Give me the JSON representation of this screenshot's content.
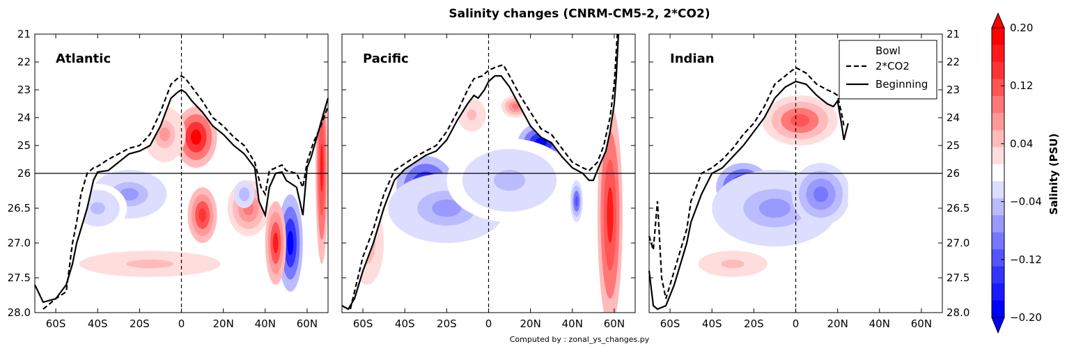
{
  "figure": {
    "title": "Salinity changes (CNRM-CM5-2, 2*CO2)",
    "footer": "Computed by : zonal_ys_changes.py"
  },
  "chart_data": {
    "type": "heatmap",
    "panels": [
      "Atlantic",
      "Pacific",
      "Indian"
    ],
    "x_ticks": [
      "60S",
      "40S",
      "20S",
      "0",
      "20N",
      "40N",
      "60N"
    ],
    "x_tick_values": [
      -60,
      -40,
      -20,
      0,
      20,
      40,
      60
    ],
    "xlim": [
      -70,
      70
    ],
    "y_ticks_upper": [
      "21",
      "22",
      "23",
      "24",
      "25",
      "26"
    ],
    "y_ticks_lower": [
      "26",
      "26.5",
      "27.0",
      "27.5",
      "28.0"
    ],
    "y_upper_range": [
      21,
      26
    ],
    "y_lower_range": [
      26,
      28
    ],
    "y_split": 26,
    "legend": {
      "title": "Bowl",
      "entries": [
        {
          "label": "2*CO2",
          "style": "dashed"
        },
        {
          "label": "Beginning",
          "style": "solid"
        }
      ]
    },
    "colorbar": {
      "label": "Salinity (PSU)",
      "tick_labels": [
        "0.20",
        "0.12",
        "0.04",
        "−0.04",
        "−0.12",
        "−0.20"
      ],
      "tick_values": [
        0.2,
        0.12,
        0.04,
        -0.04,
        -0.12,
        -0.2
      ],
      "range": [
        -0.2,
        0.2
      ],
      "extend": "both",
      "colors": [
        "#0000ff",
        "#1a1aff",
        "#3333ff",
        "#5555ff",
        "#7777ff",
        "#9999ff",
        "#bbbbff",
        "#ddddff",
        "#ffffff",
        "#ffdddd",
        "#ffbbbb",
        "#ff9999",
        "#ff7777",
        "#ff5555",
        "#ff3333",
        "#ff1a1a",
        "#ff0000"
      ]
    },
    "bowl_lines": [
      {
        "basin": "Atlantic",
        "beginning": [
          [
            -70,
            27.6
          ],
          [
            -66,
            27.85
          ],
          [
            -60,
            27.8
          ],
          [
            -55,
            27.6
          ],
          [
            -52,
            27.3
          ],
          [
            -50,
            27.0
          ],
          [
            -48,
            26.8
          ],
          [
            -45,
            26.5
          ],
          [
            -42,
            26.1
          ],
          [
            -40,
            25.95
          ],
          [
            -35,
            25.9
          ],
          [
            -30,
            25.6
          ],
          [
            -25,
            25.3
          ],
          [
            -20,
            25.2
          ],
          [
            -15,
            25.0
          ],
          [
            -10,
            24.3
          ],
          [
            -5,
            23.3
          ],
          [
            -2,
            23.1
          ],
          [
            0,
            23.0
          ],
          [
            2,
            23.1
          ],
          [
            5,
            23.4
          ],
          [
            10,
            23.8
          ],
          [
            15,
            24.3
          ],
          [
            20,
            24.6
          ],
          [
            25,
            25.0
          ],
          [
            30,
            25.3
          ],
          [
            35,
            25.8
          ],
          [
            37,
            26.4
          ],
          [
            40,
            26.6
          ],
          [
            42,
            26.2
          ],
          [
            45,
            26.0
          ],
          [
            48,
            25.95
          ],
          [
            50,
            26.1
          ],
          [
            55,
            26.2
          ],
          [
            58,
            26.6
          ],
          [
            60,
            25.8
          ],
          [
            62,
            25.4
          ],
          [
            65,
            24.6
          ],
          [
            68,
            23.8
          ],
          [
            70,
            23.3
          ]
        ],
        "co2": [
          [
            -66,
            27.95
          ],
          [
            -60,
            27.8
          ],
          [
            -55,
            27.7
          ],
          [
            -52,
            27.0
          ],
          [
            -50,
            26.7
          ],
          [
            -48,
            26.3
          ],
          [
            -45,
            26.0
          ],
          [
            -42,
            25.8
          ],
          [
            -40,
            25.75
          ],
          [
            -35,
            25.5
          ],
          [
            -30,
            25.3
          ],
          [
            -25,
            25.1
          ],
          [
            -20,
            25.0
          ],
          [
            -15,
            24.6
          ],
          [
            -10,
            23.8
          ],
          [
            -5,
            22.8
          ],
          [
            -2,
            22.6
          ],
          [
            0,
            22.5
          ],
          [
            2,
            22.6
          ],
          [
            5,
            22.9
          ],
          [
            10,
            23.4
          ],
          [
            15,
            24.0
          ],
          [
            20,
            24.3
          ],
          [
            25,
            24.7
          ],
          [
            30,
            25.0
          ],
          [
            35,
            25.6
          ],
          [
            38,
            26.2
          ],
          [
            40,
            26.3
          ],
          [
            42,
            25.9
          ],
          [
            45,
            25.8
          ],
          [
            48,
            25.7
          ],
          [
            50,
            25.9
          ],
          [
            55,
            26.0
          ],
          [
            58,
            26.2
          ],
          [
            60,
            25.6
          ],
          [
            63,
            24.9
          ],
          [
            66,
            24.4
          ],
          [
            70,
            23.6
          ]
        ]
      },
      {
        "basin": "Pacific",
        "beginning": [
          [
            -70,
            27.9
          ],
          [
            -67,
            27.95
          ],
          [
            -64,
            27.8
          ],
          [
            -60,
            27.4
          ],
          [
            -55,
            27.0
          ],
          [
            -50,
            26.5
          ],
          [
            -45,
            26.1
          ],
          [
            -40,
            25.85
          ],
          [
            -35,
            25.6
          ],
          [
            -30,
            25.35
          ],
          [
            -25,
            25.2
          ],
          [
            -20,
            24.8
          ],
          [
            -15,
            24.1
          ],
          [
            -10,
            23.5
          ],
          [
            -7,
            23.2
          ],
          [
            -5,
            23.3
          ],
          [
            -2,
            23.0
          ],
          [
            0,
            22.7
          ],
          [
            3,
            22.5
          ],
          [
            6,
            22.5
          ],
          [
            10,
            22.9
          ],
          [
            15,
            23.6
          ],
          [
            20,
            24.3
          ],
          [
            25,
            24.7
          ],
          [
            30,
            24.9
          ],
          [
            35,
            25.4
          ],
          [
            40,
            25.8
          ],
          [
            45,
            26.0
          ],
          [
            48,
            26.1
          ],
          [
            50,
            26.1
          ],
          [
            53,
            25.7
          ],
          [
            56,
            25.2
          ],
          [
            58,
            24.5
          ],
          [
            60,
            23.5
          ],
          [
            61,
            22.5
          ],
          [
            62,
            21.0
          ]
        ],
        "co2": [
          [
            -66,
            27.95
          ],
          [
            -64,
            27.7
          ],
          [
            -60,
            27.2
          ],
          [
            -55,
            26.8
          ],
          [
            -50,
            26.3
          ],
          [
            -45,
            25.9
          ],
          [
            -40,
            25.65
          ],
          [
            -35,
            25.4
          ],
          [
            -30,
            25.2
          ],
          [
            -25,
            25.0
          ],
          [
            -20,
            24.5
          ],
          [
            -15,
            23.8
          ],
          [
            -10,
            23.0
          ],
          [
            -7,
            22.6
          ],
          [
            -3,
            22.5
          ],
          [
            0,
            22.3
          ],
          [
            3,
            22.2
          ],
          [
            7,
            22.1
          ],
          [
            10,
            22.5
          ],
          [
            15,
            23.2
          ],
          [
            20,
            23.8
          ],
          [
            25,
            24.4
          ],
          [
            30,
            24.6
          ],
          [
            35,
            25.1
          ],
          [
            40,
            25.6
          ],
          [
            45,
            25.8
          ],
          [
            48,
            25.9
          ],
          [
            52,
            25.6
          ],
          [
            55,
            25.0
          ],
          [
            58,
            24.0
          ],
          [
            60,
            22.8
          ],
          [
            61.5,
            21.0
          ]
        ]
      },
      {
        "basin": "Indian",
        "beginning": [
          [
            -70,
            27.4
          ],
          [
            -68,
            27.9
          ],
          [
            -66,
            27.95
          ],
          [
            -62,
            27.9
          ],
          [
            -58,
            27.6
          ],
          [
            -55,
            27.3
          ],
          [
            -52,
            27.0
          ],
          [
            -50,
            26.7
          ],
          [
            -45,
            26.3
          ],
          [
            -40,
            26.0
          ],
          [
            -35,
            25.8
          ],
          [
            -30,
            25.4
          ],
          [
            -25,
            25.0
          ],
          [
            -20,
            24.5
          ],
          [
            -15,
            24.0
          ],
          [
            -10,
            23.3
          ],
          [
            -5,
            22.9
          ],
          [
            0,
            22.7
          ],
          [
            5,
            22.8
          ],
          [
            10,
            23.2
          ],
          [
            15,
            23.5
          ],
          [
            18,
            23.6
          ],
          [
            20,
            23.4
          ],
          [
            22,
            24.3
          ],
          [
            23,
            24.8
          ],
          [
            24,
            24.5
          ],
          [
            25,
            24.2
          ]
        ],
        "co2": [
          [
            -70,
            26.9
          ],
          [
            -68,
            27.1
          ],
          [
            -66,
            26.4
          ],
          [
            -64,
            27.5
          ],
          [
            -62,
            27.8
          ],
          [
            -58,
            27.4
          ],
          [
            -55,
            27.1
          ],
          [
            -52,
            26.8
          ],
          [
            -50,
            26.4
          ],
          [
            -45,
            26.0
          ],
          [
            -40,
            25.8
          ],
          [
            -35,
            25.5
          ],
          [
            -30,
            25.1
          ],
          [
            -25,
            24.6
          ],
          [
            -20,
            24.2
          ],
          [
            -15,
            23.6
          ],
          [
            -10,
            22.8
          ],
          [
            -5,
            22.5
          ],
          [
            0,
            22.2
          ],
          [
            5,
            22.4
          ],
          [
            10,
            22.8
          ],
          [
            15,
            23.0
          ],
          [
            18,
            23.1
          ],
          [
            20,
            23.2
          ],
          [
            22,
            23.9
          ],
          [
            23,
            24.3
          ]
        ]
      }
    ],
    "blobs": [
      {
        "panel": 0,
        "x": 7,
        "y": 24.7,
        "rx": 10,
        "ry": 1.1,
        "v": 0.19
      },
      {
        "panel": 0,
        "x": 10,
        "y": 26.6,
        "rx": 7,
        "ry": 0.4,
        "v": 0.16
      },
      {
        "panel": 0,
        "x": -8,
        "y": 24.6,
        "rx": 10,
        "ry": 1.0,
        "v": 0.07
      },
      {
        "panel": 0,
        "x": -25,
        "y": 26.3,
        "rx": 18,
        "ry": 0.35,
        "v": -0.07
      },
      {
        "panel": 0,
        "x": -40,
        "y": 26.5,
        "rx": 14,
        "ry": 0.35,
        "v": -0.04
      },
      {
        "panel": 0,
        "x": 32,
        "y": 26.5,
        "rx": 10,
        "ry": 0.4,
        "v": 0.09
      },
      {
        "panel": 0,
        "x": 30,
        "y": 26.3,
        "rx": 5,
        "ry": 0.2,
        "v": -0.06
      },
      {
        "panel": 0,
        "x": 52,
        "y": 27.0,
        "rx": 6,
        "ry": 0.7,
        "v": -0.2
      },
      {
        "panel": 0,
        "x": 45,
        "y": 27.0,
        "rx": 5,
        "ry": 0.6,
        "v": 0.17
      },
      {
        "panel": 0,
        "x": 67,
        "y": 25.8,
        "rx": 3,
        "ry": 1.5,
        "v": 0.18
      },
      {
        "panel": 0,
        "x": -15,
        "y": 27.3,
        "rx": 45,
        "ry": 0.25,
        "v": 0.04
      },
      {
        "panel": 1,
        "x": -30,
        "y": 26.2,
        "rx": 14,
        "ry": 0.45,
        "v": -0.2
      },
      {
        "panel": 1,
        "x": -20,
        "y": 26.5,
        "rx": 28,
        "ry": 0.5,
        "v": -0.07
      },
      {
        "panel": 1,
        "x": 25,
        "y": 24.9,
        "rx": 11,
        "ry": 0.7,
        "v": -0.2
      },
      {
        "panel": 1,
        "x": 10,
        "y": 26.1,
        "rx": 30,
        "ry": 0.6,
        "v": -0.05
      },
      {
        "panel": 1,
        "x": 13,
        "y": 23.6,
        "rx": 7,
        "ry": 0.4,
        "v": 0.1
      },
      {
        "panel": 1,
        "x": -8,
        "y": 23.9,
        "rx": 9,
        "ry": 0.8,
        "v": 0.04
      },
      {
        "panel": 1,
        "x": 58,
        "y": 26.6,
        "rx": 6,
        "ry": 1.6,
        "v": 0.18
      },
      {
        "panel": 1,
        "x": 42,
        "y": 26.4,
        "rx": 3,
        "ry": 0.3,
        "v": -0.12
      },
      {
        "panel": 1,
        "x": -58,
        "y": 27.0,
        "rx": 8,
        "ry": 0.6,
        "v": 0.05
      },
      {
        "panel": 2,
        "x": -25,
        "y": 26.2,
        "rx": 13,
        "ry": 0.35,
        "v": -0.2
      },
      {
        "panel": 2,
        "x": -10,
        "y": 26.5,
        "rx": 30,
        "ry": 0.55,
        "v": -0.07
      },
      {
        "panel": 2,
        "x": 12,
        "y": 26.3,
        "rx": 14,
        "ry": 0.45,
        "v": -0.1
      },
      {
        "panel": 2,
        "x": 2,
        "y": 24.1,
        "rx": 18,
        "ry": 0.9,
        "v": 0.12
      },
      {
        "panel": 2,
        "x": -30,
        "y": 27.3,
        "rx": 22,
        "ry": 0.25,
        "v": 0.04
      }
    ]
  }
}
